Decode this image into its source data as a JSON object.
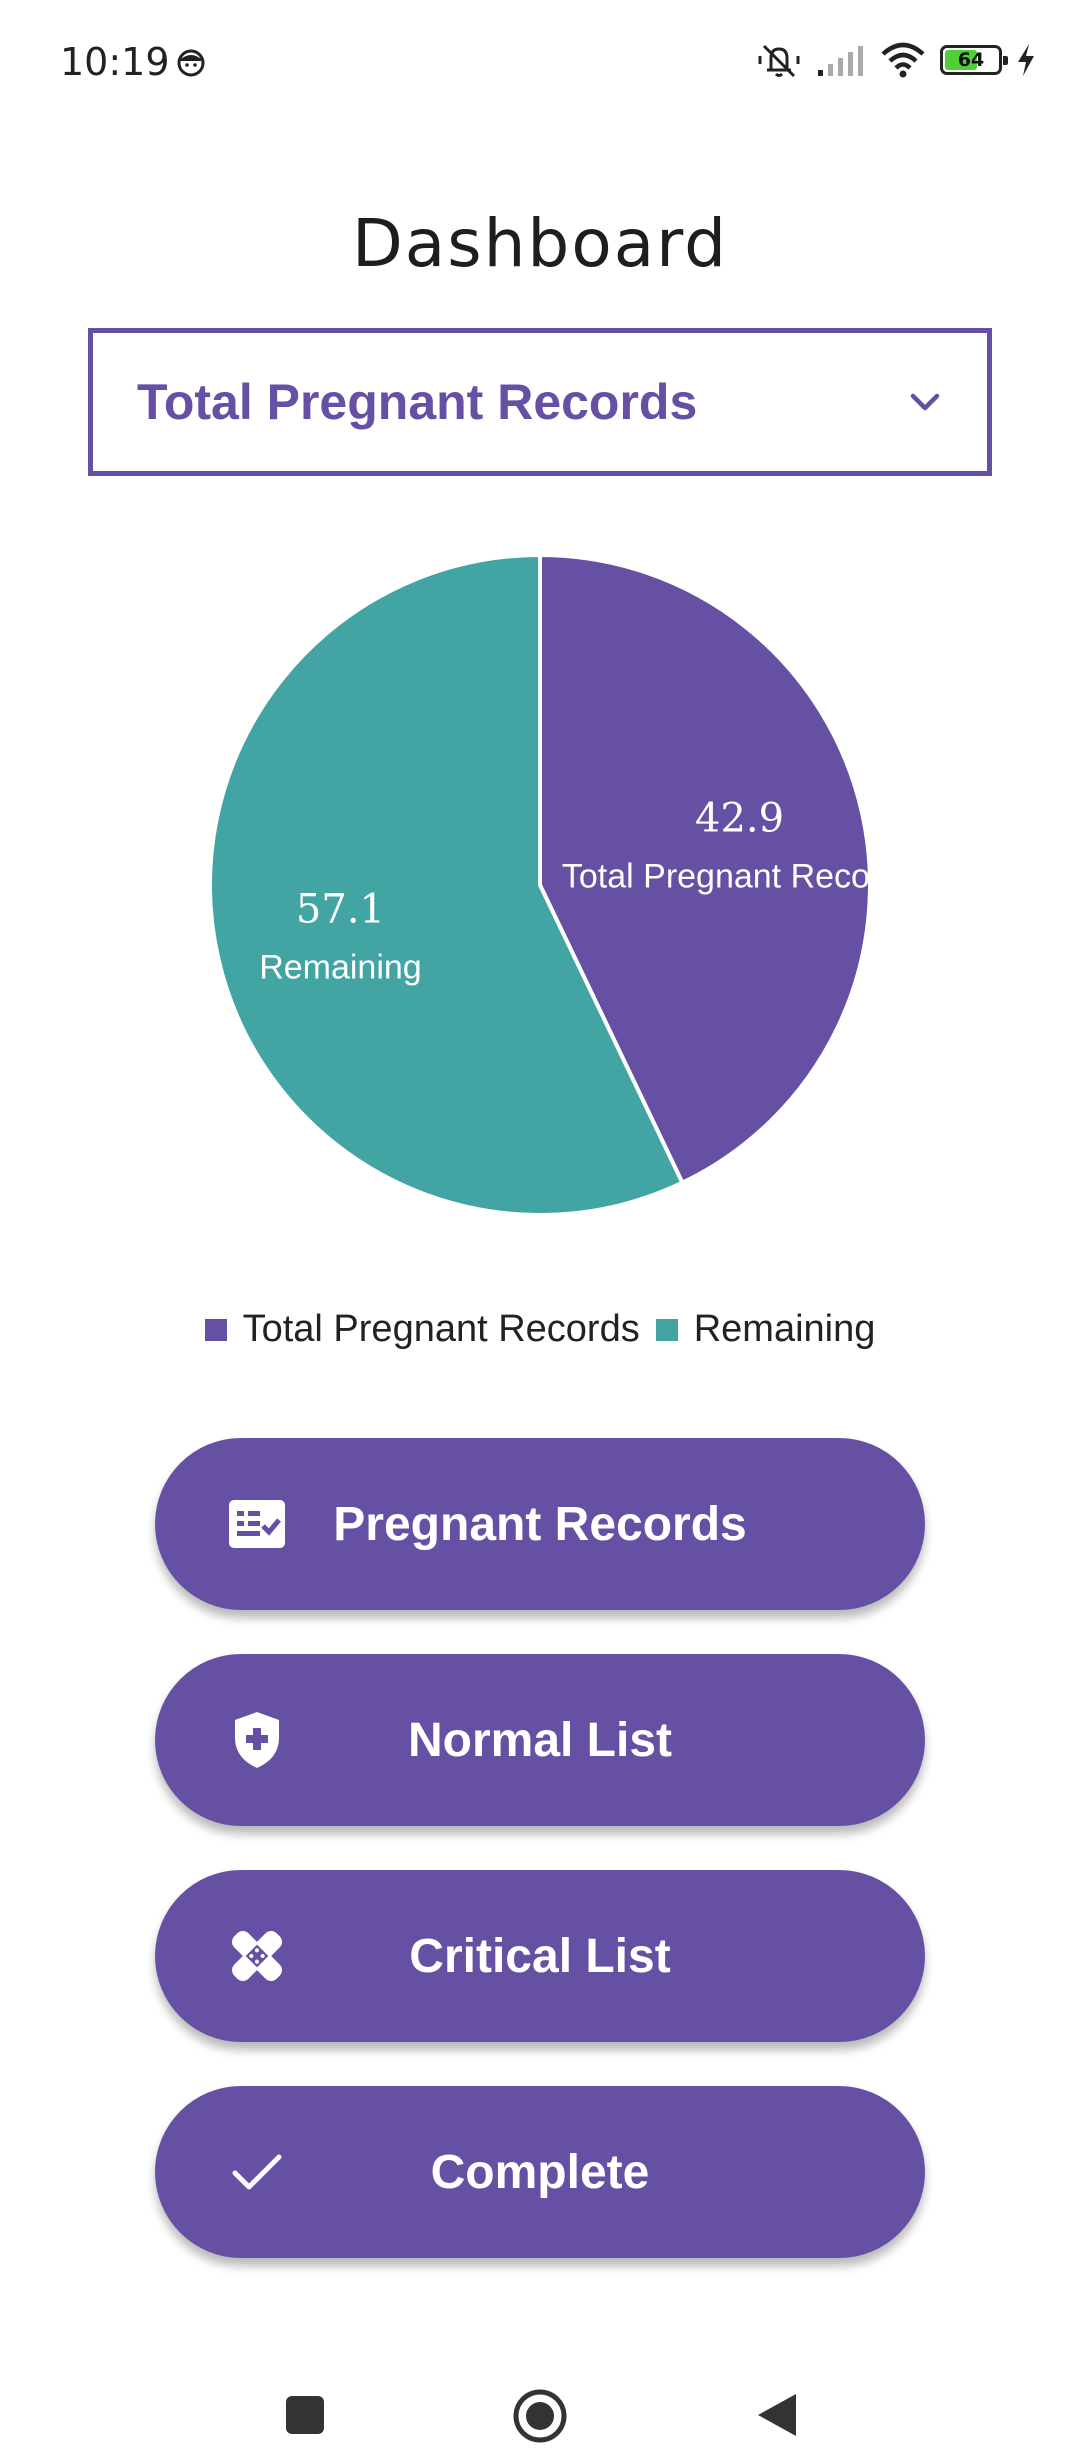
{
  "status_bar": {
    "time": "10:19",
    "battery_percent": "64",
    "icons": [
      "face-icon",
      "mute-icon",
      "signal-icon",
      "wifi-icon",
      "battery-icon",
      "charging-icon"
    ]
  },
  "page": {
    "title": "Dashboard"
  },
  "filter": {
    "selected": "Total Pregnant Records",
    "icon": "chevron-down-icon"
  },
  "colors": {
    "accent": "#6650a4",
    "remaining": "#42a5a4",
    "battery": "#4cd137"
  },
  "chart_data": {
    "type": "pie",
    "categories": [
      "Total Pregnant Records",
      "Remaining"
    ],
    "values": [
      42.9,
      57.1
    ],
    "data_labels": [
      {
        "value": "42.9",
        "name": "Total Pregnant Records"
      },
      {
        "value": "57.1",
        "name": "Remaining"
      }
    ],
    "colors": [
      "#6650a4",
      "#42a5a4"
    ],
    "legend_position": "bottom-center",
    "legend": [
      "Total Pregnant Records",
      "Remaining"
    ]
  },
  "actions": [
    {
      "label": "Pregnant Records",
      "icon": "checklist-icon"
    },
    {
      "label": "Normal List",
      "icon": "shield-plus-icon"
    },
    {
      "label": "Critical List",
      "icon": "bandage-icon"
    },
    {
      "label": "Complete",
      "icon": "check-icon"
    }
  ],
  "nav": {
    "icons": [
      "recents-square-icon",
      "home-circle-icon",
      "back-triangle-icon"
    ]
  }
}
